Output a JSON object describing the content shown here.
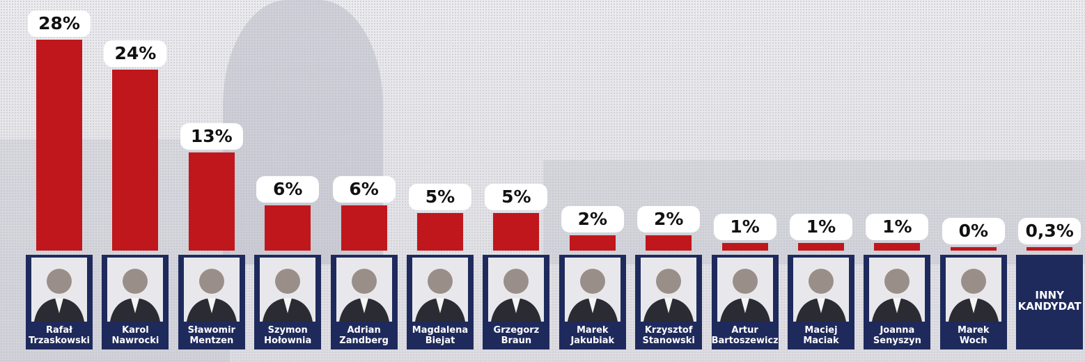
{
  "chart_data": {
    "type": "bar",
    "categories": [
      "Rafał Trzaskowski",
      "Karol Nawrocki",
      "Sławomir Mentzen",
      "Szymon Hołownia",
      "Adrian Zandberg",
      "Magdalena Biejat",
      "Grzegorz Braun",
      "Marek Jakubiak",
      "Krzysztof Stanowski",
      "Artur Bartoszewicz",
      "Maciej Maciak",
      "Joanna Senyszyn",
      "Marek Woch",
      "INNY KANDYDAT"
    ],
    "values": [
      28,
      24,
      13,
      6,
      6,
      5,
      5,
      2,
      2,
      1,
      1,
      1,
      0,
      0.3
    ],
    "value_labels": [
      "28%",
      "24%",
      "13%",
      "6%",
      "6%",
      "5%",
      "5%",
      "2%",
      "2%",
      "1%",
      "1%",
      "1%",
      "0%",
      "0,3%"
    ],
    "color": "#c0171c"
  }
}
